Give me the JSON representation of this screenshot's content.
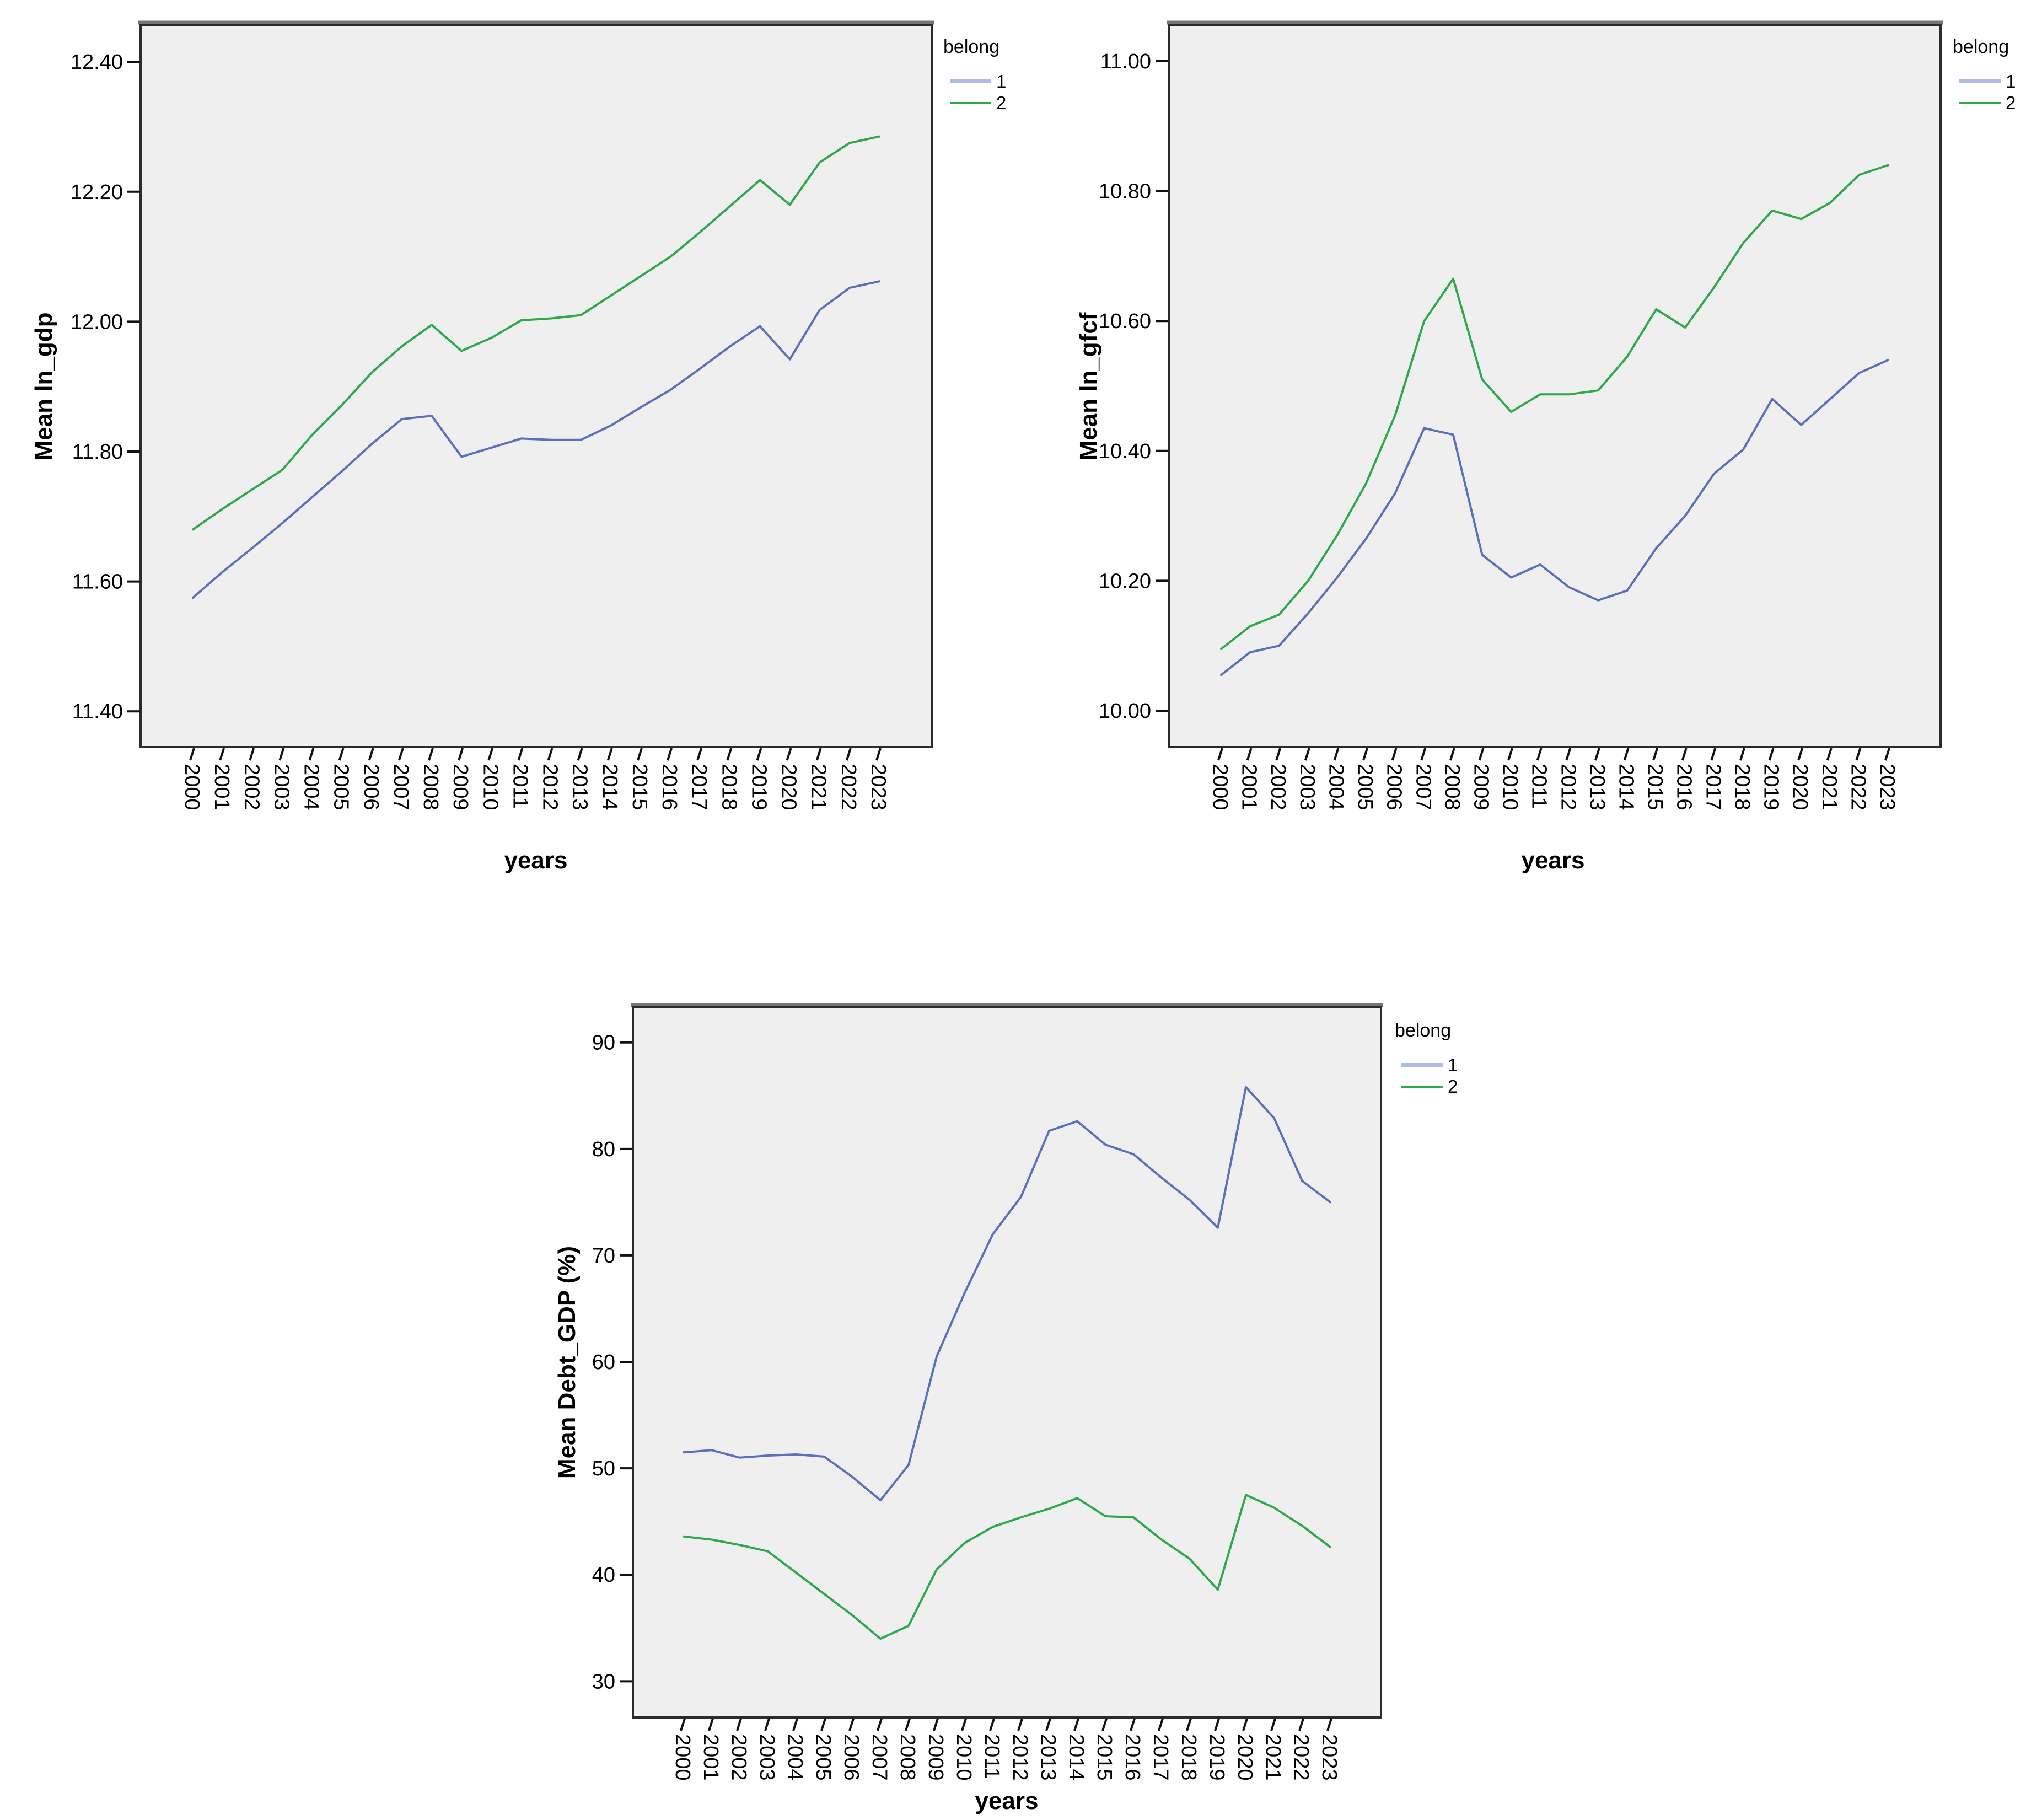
{
  "page_background": "#ffffff",
  "plot_background": "#efefef",
  "chart_data": [
    {
      "type": "line",
      "title": "",
      "ylabel": "Mean ln_gdp",
      "xlabel": "years",
      "legend_title": "belong",
      "legend_position": "top-right-outside",
      "grid": false,
      "categories": [
        "2000",
        "2001",
        "2002",
        "2003",
        "2004",
        "2005",
        "2006",
        "2007",
        "2008",
        "2009",
        "2010",
        "2011",
        "2012",
        "2013",
        "2014",
        "2015",
        "2016",
        "2017",
        "2018",
        "2019",
        "2020",
        "2021",
        "2022",
        "2023"
      ],
      "ylim": [
        11.345,
        12.457
      ],
      "yticks": [
        11.4,
        11.6,
        11.8,
        12.0,
        12.2,
        12.4
      ],
      "ytick_decimals": 2,
      "series": [
        {
          "name": "1",
          "color": "#5A71BA",
          "legend_color": "#AEBBE2",
          "values": [
            11.575,
            11.615,
            11.652,
            11.69,
            11.73,
            11.77,
            11.812,
            11.85,
            11.855,
            11.792,
            11.806,
            11.82,
            11.818,
            11.818,
            11.84,
            11.868,
            11.895,
            11.928,
            11.962,
            11.993,
            11.942,
            12.018,
            12.052,
            12.062
          ]
        },
        {
          "name": "2",
          "color": "#2FA84A",
          "legend_color": "#2FA84A",
          "values": [
            11.68,
            11.712,
            11.742,
            11.772,
            11.826,
            11.872,
            11.922,
            11.962,
            11.995,
            11.955,
            11.975,
            12.002,
            12.005,
            12.01,
            12.04,
            12.07,
            12.1,
            12.138,
            12.178,
            12.218,
            12.18,
            12.245,
            12.275,
            12.285
          ]
        }
      ]
    },
    {
      "type": "line",
      "title": "",
      "ylabel": "Mean ln_gfcf",
      "xlabel": "years",
      "legend_title": "belong",
      "legend_position": "top-right-outside",
      "grid": false,
      "categories": [
        "2000",
        "2001",
        "2002",
        "2003",
        "2004",
        "2005",
        "2006",
        "2007",
        "2008",
        "2009",
        "2010",
        "2011",
        "2012",
        "2013",
        "2014",
        "2015",
        "2016",
        "2017",
        "2018",
        "2019",
        "2020",
        "2021",
        "2022",
        "2023"
      ],
      "ylim": [
        9.944,
        11.056
      ],
      "yticks": [
        10.0,
        10.2,
        10.4,
        10.6,
        10.8,
        11.0
      ],
      "ytick_decimals": 2,
      "series": [
        {
          "name": "1",
          "color": "#5A71BA",
          "legend_color": "#AEBBE2",
          "values": [
            10.055,
            10.09,
            10.1,
            10.15,
            10.205,
            10.265,
            10.335,
            10.435,
            10.425,
            10.24,
            10.205,
            10.225,
            10.19,
            10.17,
            10.185,
            10.25,
            10.3,
            10.365,
            10.402,
            10.48,
            10.44,
            10.48,
            10.52,
            10.54
          ]
        },
        {
          "name": "2",
          "color": "#2FA84A",
          "legend_color": "#2FA84A",
          "values": [
            10.095,
            10.13,
            10.148,
            10.2,
            10.27,
            10.35,
            10.455,
            10.6,
            10.665,
            10.51,
            10.46,
            10.487,
            10.487,
            10.493,
            10.545,
            10.618,
            10.59,
            10.652,
            10.72,
            10.77,
            10.757,
            10.782,
            10.825,
            10.84
          ]
        }
      ]
    },
    {
      "type": "line",
      "title": "",
      "ylabel": "Mean Debt_GDP (%)",
      "xlabel": "years",
      "legend_title": "belong",
      "legend_position": "top-right-outside",
      "grid": false,
      "categories": [
        "2000",
        "2001",
        "2002",
        "2003",
        "2004",
        "2005",
        "2006",
        "2007",
        "2008",
        "2009",
        "2010",
        "2011",
        "2012",
        "2013",
        "2014",
        "2015",
        "2016",
        "2017",
        "2018",
        "2019",
        "2020",
        "2021",
        "2022",
        "2023"
      ],
      "ylim": [
        26.6,
        93.3
      ],
      "yticks": [
        30,
        40,
        50,
        60,
        70,
        80,
        90
      ],
      "ytick_decimals": 0,
      "series": [
        {
          "name": "1",
          "color": "#5A71BA",
          "legend_color": "#AEBBE2",
          "values": [
            51.5,
            51.7,
            51.0,
            51.2,
            51.3,
            51.1,
            49.2,
            47.0,
            50.3,
            60.5,
            66.5,
            72.0,
            75.5,
            81.7,
            82.6,
            80.4,
            79.5,
            77.3,
            75.2,
            72.6,
            85.8,
            82.9,
            77.0,
            75.0
          ]
        },
        {
          "name": "2",
          "color": "#2FA84A",
          "legend_color": "#2FA84A",
          "values": [
            43.6,
            43.3,
            42.8,
            42.2,
            40.2,
            38.2,
            36.2,
            34.0,
            35.2,
            40.5,
            43.0,
            44.5,
            45.4,
            46.2,
            47.2,
            45.5,
            45.4,
            43.3,
            41.5,
            38.6,
            47.5,
            46.3,
            44.6,
            42.6
          ]
        }
      ]
    }
  ]
}
